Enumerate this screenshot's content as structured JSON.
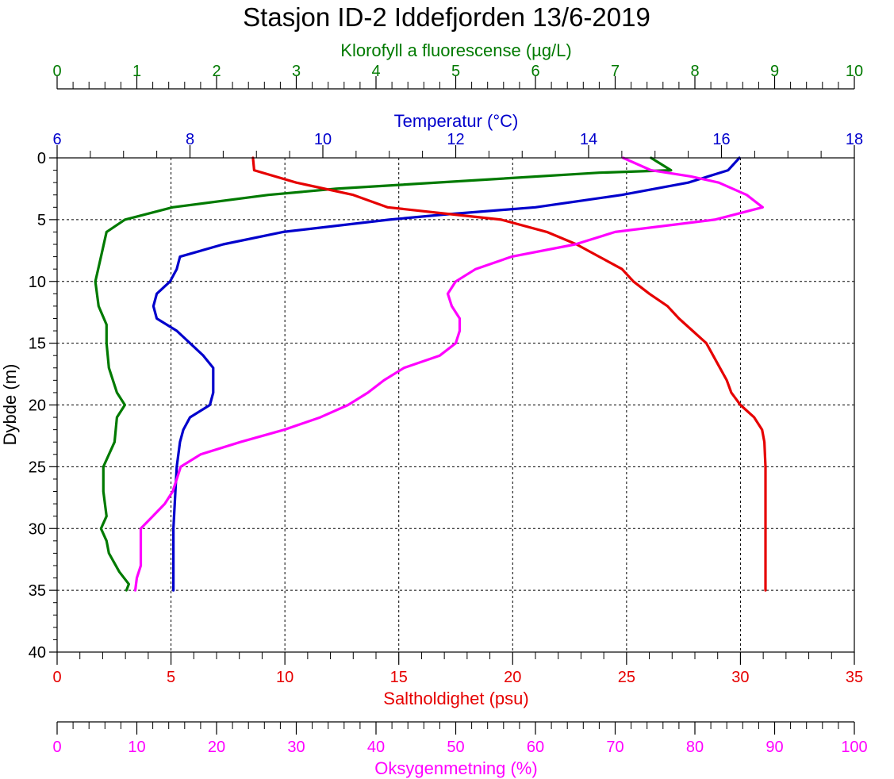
{
  "chart_data": {
    "type": "line",
    "title": "Stasjon ID-2 Iddefjorden 13/6-2019",
    "ylabel": "Dybde (m)",
    "ylim": [
      0,
      40
    ],
    "y_inverted": true,
    "grid": true,
    "y_ticks": [
      "0",
      "5",
      "10",
      "15",
      "20",
      "25",
      "30",
      "35",
      "40"
    ],
    "axes": {
      "chlorophyll": {
        "label": "Klorofyll a fluorescense (µg/L)",
        "position": "top",
        "color": "#007a00",
        "range": [
          0,
          10
        ],
        "ticks": [
          "0",
          "1",
          "2",
          "3",
          "4",
          "5",
          "6",
          "7",
          "8",
          "9",
          "10"
        ]
      },
      "temperature": {
        "label": "Temperatur (°C)",
        "position": "top",
        "color": "#0000cc",
        "range": [
          6,
          18
        ],
        "ticks": [
          "6",
          "8",
          "10",
          "12",
          "14",
          "16",
          "18"
        ]
      },
      "salinity": {
        "label": "Saltholdighet (psu)",
        "position": "bottom",
        "color": "#e60000",
        "range": [
          0,
          35
        ],
        "ticks": [
          "0",
          "5",
          "10",
          "15",
          "20",
          "25",
          "30",
          "35"
        ]
      },
      "oxygen": {
        "label": "Oksygenmetning (%)",
        "position": "bottom",
        "color": "#ff00ff",
        "range": [
          0,
          100
        ],
        "ticks": [
          "0",
          "10",
          "20",
          "30",
          "40",
          "50",
          "60",
          "70",
          "80",
          "90",
          "100"
        ]
      }
    },
    "series": [
      {
        "axis": "chlorophyll",
        "color": "#007a00",
        "points": [
          [
            7.45,
            0
          ],
          [
            7.7,
            1
          ],
          [
            6.8,
            1.2
          ],
          [
            3.5,
            2.5
          ],
          [
            2.65,
            3
          ],
          [
            1.45,
            4
          ],
          [
            0.85,
            5
          ],
          [
            0.62,
            6
          ],
          [
            0.55,
            8
          ],
          [
            0.48,
            10
          ],
          [
            0.52,
            12
          ],
          [
            0.62,
            13.5
          ],
          [
            0.62,
            15
          ],
          [
            0.65,
            17
          ],
          [
            0.75,
            19
          ],
          [
            0.85,
            20
          ],
          [
            0.75,
            21
          ],
          [
            0.72,
            23
          ],
          [
            0.58,
            25
          ],
          [
            0.58,
            27
          ],
          [
            0.62,
            29
          ],
          [
            0.55,
            30
          ],
          [
            0.62,
            31
          ],
          [
            0.65,
            32
          ],
          [
            0.78,
            33.5
          ],
          [
            0.9,
            34.5
          ],
          [
            0.87,
            35
          ]
        ]
      },
      {
        "axis": "temperature",
        "color": "#0000cc",
        "points": [
          [
            16.27,
            0
          ],
          [
            16.1,
            1
          ],
          [
            15.5,
            2
          ],
          [
            14.5,
            3
          ],
          [
            13.2,
            4
          ],
          [
            11.8,
            4.6
          ],
          [
            11.0,
            5
          ],
          [
            9.4,
            6
          ],
          [
            8.5,
            7
          ],
          [
            7.85,
            8
          ],
          [
            7.8,
            9
          ],
          [
            7.7,
            10
          ],
          [
            7.5,
            11
          ],
          [
            7.45,
            12
          ],
          [
            7.5,
            13
          ],
          [
            7.8,
            14
          ],
          [
            8.0,
            15
          ],
          [
            8.2,
            16
          ],
          [
            8.35,
            17
          ],
          [
            8.35,
            18
          ],
          [
            8.35,
            19
          ],
          [
            8.3,
            20
          ],
          [
            8.0,
            21
          ],
          [
            7.9,
            22
          ],
          [
            7.85,
            23
          ],
          [
            7.8,
            25
          ],
          [
            7.78,
            27
          ],
          [
            7.75,
            30
          ],
          [
            7.75,
            33
          ],
          [
            7.75,
            35
          ]
        ]
      },
      {
        "axis": "salinity",
        "color": "#e60000",
        "points": [
          [
            8.6,
            0
          ],
          [
            8.65,
            1
          ],
          [
            10.5,
            2
          ],
          [
            13.0,
            3
          ],
          [
            14.5,
            4
          ],
          [
            17.0,
            4.5
          ],
          [
            19.5,
            5
          ],
          [
            21.5,
            6
          ],
          [
            22.8,
            7
          ],
          [
            23.8,
            8
          ],
          [
            24.8,
            9
          ],
          [
            25.3,
            10
          ],
          [
            26.0,
            11
          ],
          [
            26.8,
            12
          ],
          [
            27.3,
            13
          ],
          [
            27.9,
            14
          ],
          [
            28.5,
            15
          ],
          [
            28.8,
            16
          ],
          [
            29.1,
            17
          ],
          [
            29.4,
            18
          ],
          [
            29.6,
            19
          ],
          [
            30.0,
            20
          ],
          [
            30.6,
            21
          ],
          [
            30.95,
            22
          ],
          [
            31.05,
            23
          ],
          [
            31.1,
            25
          ],
          [
            31.1,
            28
          ],
          [
            31.1,
            30
          ],
          [
            31.1,
            33
          ],
          [
            31.1,
            35
          ]
        ]
      },
      {
        "axis": "oxygen",
        "color": "#ff00ff",
        "points": [
          [
            71.0,
            0
          ],
          [
            74.5,
            1
          ],
          [
            79.5,
            1.5
          ],
          [
            83.0,
            2
          ],
          [
            86.5,
            3
          ],
          [
            88.5,
            4
          ],
          [
            82.5,
            5
          ],
          [
            70.0,
            6
          ],
          [
            65.0,
            7
          ],
          [
            57.0,
            8
          ],
          [
            52.5,
            9
          ],
          [
            50.0,
            10
          ],
          [
            49.0,
            11
          ],
          [
            49.5,
            12
          ],
          [
            50.5,
            13
          ],
          [
            50.5,
            14
          ],
          [
            50.0,
            15
          ],
          [
            48.0,
            16
          ],
          [
            43.5,
            17
          ],
          [
            41.0,
            18
          ],
          [
            39.0,
            19
          ],
          [
            36.5,
            20
          ],
          [
            33.0,
            21
          ],
          [
            28.5,
            22
          ],
          [
            23.0,
            23
          ],
          [
            18.0,
            24
          ],
          [
            15.5,
            25
          ],
          [
            15.0,
            26
          ],
          [
            14.5,
            27
          ],
          [
            13.5,
            28
          ],
          [
            12.0,
            29
          ],
          [
            10.5,
            30
          ],
          [
            10.5,
            31
          ],
          [
            10.5,
            32
          ],
          [
            10.5,
            33
          ],
          [
            10.0,
            34
          ],
          [
            9.8,
            35
          ]
        ]
      }
    ]
  }
}
